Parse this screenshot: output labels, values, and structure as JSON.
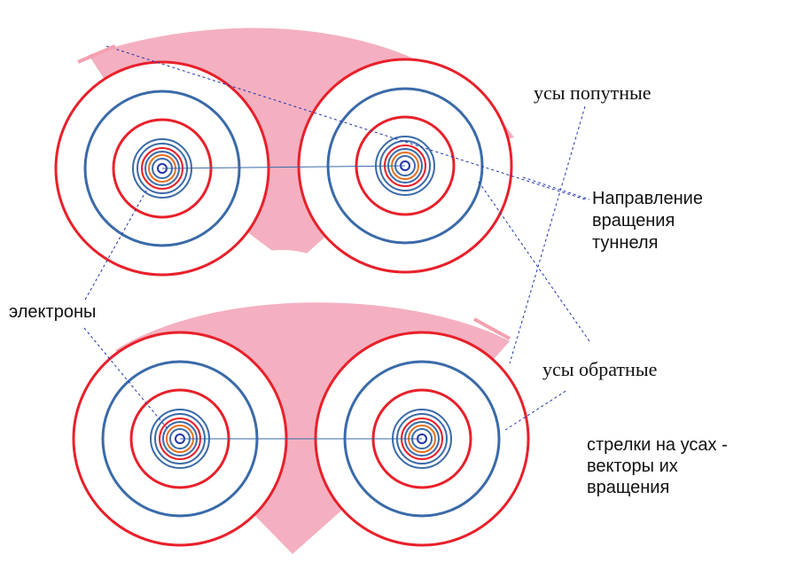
{
  "labels": {
    "co_directional": "усы попутные",
    "tunnel_rotation": [
      "Направление",
      "вращения",
      "туннеля"
    ],
    "electrons": "электроны",
    "reverse": "усы обратные",
    "arrows_note": [
      "стрелки на  усах -",
      "векторы их",
      "вращения"
    ]
  }
}
